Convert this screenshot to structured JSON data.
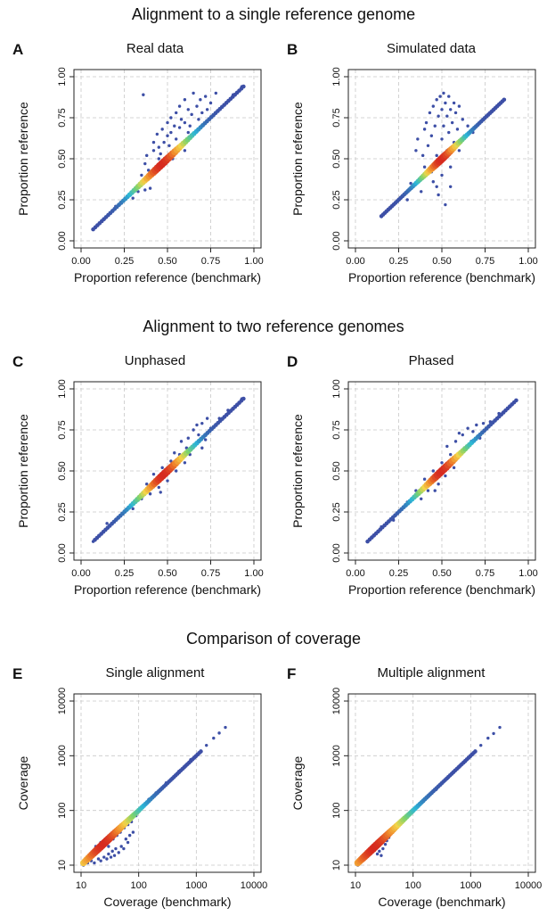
{
  "sections": [
    {
      "title": "Alignment to a single reference genome"
    },
    {
      "title": "Alignment to two reference genomes"
    },
    {
      "title": "Comparison of coverage"
    }
  ],
  "colors": {
    "axis": "#222222",
    "grid": "#c8c8c8",
    "points": "#3d4fa6",
    "density_gradient": [
      "#3d4fa6",
      "#2bb6d8",
      "#7ed36b",
      "#f3d54a",
      "#f08a2c",
      "#d62a1f"
    ]
  },
  "chart_data": [
    {
      "id": "A",
      "letter": "A",
      "title": "Real data",
      "type": "scatter",
      "xlabel": "Proportion reference (benchmark)",
      "ylabel": "Proportion reference",
      "scale": "linear",
      "xlim": [
        0,
        1
      ],
      "ylim": [
        0,
        1
      ],
      "xticks": [
        0,
        0.25,
        0.5,
        0.75,
        1
      ],
      "yticks": [
        0,
        0.25,
        0.5,
        0.75,
        1
      ],
      "xtick_labels": [
        "0.00",
        "0.25",
        "0.50",
        "0.75",
        "1.00"
      ],
      "ytick_labels": [
        "0.00",
        "0.25",
        "0.50",
        "0.75",
        "1.00"
      ],
      "grid": true,
      "diagonal": {
        "from": 0.07,
        "to": 0.94
      },
      "density_peak": 0.47,
      "points": [
        [
          0.07,
          0.07
        ],
        [
          0.12,
          0.12
        ],
        [
          0.2,
          0.21
        ],
        [
          0.3,
          0.26
        ],
        [
          0.33,
          0.3
        ],
        [
          0.35,
          0.4
        ],
        [
          0.37,
          0.47
        ],
        [
          0.38,
          0.52
        ],
        [
          0.4,
          0.32
        ],
        [
          0.42,
          0.55
        ],
        [
          0.42,
          0.6
        ],
        [
          0.44,
          0.65
        ],
        [
          0.45,
          0.5
        ],
        [
          0.45,
          0.57
        ],
        [
          0.47,
          0.68
        ],
        [
          0.48,
          0.6
        ],
        [
          0.5,
          0.72
        ],
        [
          0.5,
          0.64
        ],
        [
          0.52,
          0.75
        ],
        [
          0.52,
          0.66
        ],
        [
          0.54,
          0.7
        ],
        [
          0.55,
          0.78
        ],
        [
          0.55,
          0.62
        ],
        [
          0.57,
          0.82
        ],
        [
          0.57,
          0.69
        ],
        [
          0.58,
          0.74
        ],
        [
          0.6,
          0.86
        ],
        [
          0.6,
          0.72
        ],
        [
          0.62,
          0.8
        ],
        [
          0.63,
          0.7
        ],
        [
          0.64,
          0.77
        ],
        [
          0.65,
          0.9
        ],
        [
          0.67,
          0.82
        ],
        [
          0.68,
          0.74
        ],
        [
          0.69,
          0.86
        ],
        [
          0.7,
          0.78
        ],
        [
          0.72,
          0.88
        ],
        [
          0.73,
          0.8
        ],
        [
          0.75,
          0.84
        ],
        [
          0.78,
          0.9
        ],
        [
          0.36,
          0.89
        ],
        [
          0.37,
          0.31
        ],
        [
          0.39,
          0.43
        ],
        [
          0.53,
          0.5
        ],
        [
          0.6,
          0.55
        ],
        [
          0.88,
          0.89
        ],
        [
          0.93,
          0.94
        ],
        [
          0.46,
          0.53
        ],
        [
          0.51,
          0.58
        ],
        [
          0.62,
          0.66
        ]
      ]
    },
    {
      "id": "B",
      "letter": "B",
      "title": "Simulated data",
      "type": "scatter",
      "xlabel": "Proportion reference (benchmark)",
      "ylabel": "Proportion reference",
      "scale": "linear",
      "xlim": [
        0,
        1
      ],
      "ylim": [
        0,
        1
      ],
      "xticks": [
        0,
        0.25,
        0.5,
        0.75,
        1
      ],
      "yticks": [
        0,
        0.25,
        0.5,
        0.75,
        1
      ],
      "xtick_labels": [
        "0.00",
        "0.25",
        "0.50",
        "0.75",
        "1.00"
      ],
      "ytick_labels": [
        "0.00",
        "0.25",
        "0.50",
        "0.75",
        "1.00"
      ],
      "grid": true,
      "diagonal": {
        "from": 0.15,
        "to": 0.86
      },
      "density_peak": 0.5,
      "points": [
        [
          0.15,
          0.15
        ],
        [
          0.3,
          0.25
        ],
        [
          0.32,
          0.35
        ],
        [
          0.35,
          0.55
        ],
        [
          0.36,
          0.62
        ],
        [
          0.38,
          0.3
        ],
        [
          0.4,
          0.68
        ],
        [
          0.4,
          0.45
        ],
        [
          0.41,
          0.72
        ],
        [
          0.42,
          0.58
        ],
        [
          0.43,
          0.78
        ],
        [
          0.44,
          0.64
        ],
        [
          0.45,
          0.82
        ],
        [
          0.45,
          0.36
        ],
        [
          0.46,
          0.7
        ],
        [
          0.47,
          0.86
        ],
        [
          0.47,
          0.52
        ],
        [
          0.48,
          0.76
        ],
        [
          0.48,
          0.28
        ],
        [
          0.49,
          0.88
        ],
        [
          0.5,
          0.8
        ],
        [
          0.5,
          0.62
        ],
        [
          0.5,
          0.4
        ],
        [
          0.51,
          0.9
        ],
        [
          0.51,
          0.7
        ],
        [
          0.52,
          0.84
        ],
        [
          0.52,
          0.22
        ],
        [
          0.53,
          0.76
        ],
        [
          0.53,
          0.55
        ],
        [
          0.54,
          0.88
        ],
        [
          0.54,
          0.66
        ],
        [
          0.55,
          0.8
        ],
        [
          0.55,
          0.45
        ],
        [
          0.56,
          0.72
        ],
        [
          0.57,
          0.84
        ],
        [
          0.57,
          0.6
        ],
        [
          0.58,
          0.78
        ],
        [
          0.59,
          0.68
        ],
        [
          0.6,
          0.82
        ],
        [
          0.6,
          0.55
        ],
        [
          0.62,
          0.74
        ],
        [
          0.63,
          0.64
        ],
        [
          0.65,
          0.7
        ],
        [
          0.39,
          0.52
        ],
        [
          0.44,
          0.42
        ],
        [
          0.47,
          0.33
        ],
        [
          0.55,
          0.33
        ],
        [
          0.61,
          0.6
        ],
        [
          0.68,
          0.66
        ],
        [
          0.86,
          0.86
        ]
      ]
    },
    {
      "id": "C",
      "letter": "C",
      "title": "Unphased",
      "type": "scatter",
      "xlabel": "Proportion reference (benchmark)",
      "ylabel": "Proportion reference",
      "scale": "linear",
      "xlim": [
        0,
        1
      ],
      "ylim": [
        0,
        1
      ],
      "xticks": [
        0,
        0.25,
        0.5,
        0.75,
        1
      ],
      "yticks": [
        0,
        0.25,
        0.5,
        0.75,
        1
      ],
      "xtick_labels": [
        "0.00",
        "0.25",
        "0.50",
        "0.75",
        "1.00"
      ],
      "ytick_labels": [
        "0.00",
        "0.25",
        "0.50",
        "0.75",
        "1.00"
      ],
      "grid": true,
      "diagonal": {
        "from": 0.08,
        "to": 0.94
      },
      "density_peak": 0.48,
      "points": [
        [
          0.07,
          0.07
        ],
        [
          0.15,
          0.18
        ],
        [
          0.22,
          0.22
        ],
        [
          0.3,
          0.27
        ],
        [
          0.35,
          0.33
        ],
        [
          0.38,
          0.42
        ],
        [
          0.4,
          0.36
        ],
        [
          0.42,
          0.48
        ],
        [
          0.45,
          0.4
        ],
        [
          0.47,
          0.52
        ],
        [
          0.5,
          0.44
        ],
        [
          0.52,
          0.56
        ],
        [
          0.55,
          0.5
        ],
        [
          0.57,
          0.6
        ],
        [
          0.58,
          0.68
        ],
        [
          0.6,
          0.55
        ],
        [
          0.62,
          0.7
        ],
        [
          0.63,
          0.6
        ],
        [
          0.65,
          0.75
        ],
        [
          0.66,
          0.66
        ],
        [
          0.68,
          0.72
        ],
        [
          0.7,
          0.79
        ],
        [
          0.7,
          0.64
        ],
        [
          0.72,
          0.69
        ],
        [
          0.73,
          0.82
        ],
        [
          0.75,
          0.76
        ],
        [
          0.8,
          0.82
        ],
        [
          0.85,
          0.87
        ],
        [
          0.9,
          0.9
        ],
        [
          0.93,
          0.94
        ],
        [
          0.46,
          0.37
        ],
        [
          0.54,
          0.61
        ],
        [
          0.61,
          0.64
        ],
        [
          0.67,
          0.78
        ]
      ]
    },
    {
      "id": "D",
      "letter": "D",
      "title": "Phased",
      "type": "scatter",
      "xlabel": "Proportion reference (benchmark)",
      "ylabel": "Proportion reference",
      "scale": "linear",
      "xlim": [
        0,
        1
      ],
      "ylim": [
        0,
        1
      ],
      "xticks": [
        0,
        0.25,
        0.5,
        0.75,
        1
      ],
      "yticks": [
        0,
        0.25,
        0.5,
        0.75,
        1
      ],
      "xtick_labels": [
        "0.00",
        "0.25",
        "0.50",
        "0.75",
        "1.00"
      ],
      "ytick_labels": [
        "0.00",
        "0.25",
        "0.50",
        "0.75",
        "1.00"
      ],
      "grid": true,
      "diagonal": {
        "from": 0.07,
        "to": 0.93
      },
      "density_peak": 0.5,
      "points": [
        [
          0.07,
          0.07
        ],
        [
          0.15,
          0.16
        ],
        [
          0.22,
          0.2
        ],
        [
          0.3,
          0.31
        ],
        [
          0.35,
          0.38
        ],
        [
          0.38,
          0.33
        ],
        [
          0.4,
          0.45
        ],
        [
          0.42,
          0.38
        ],
        [
          0.45,
          0.5
        ],
        [
          0.48,
          0.42
        ],
        [
          0.5,
          0.55
        ],
        [
          0.52,
          0.47
        ],
        [
          0.55,
          0.6
        ],
        [
          0.57,
          0.52
        ],
        [
          0.58,
          0.68
        ],
        [
          0.6,
          0.6
        ],
        [
          0.62,
          0.72
        ],
        [
          0.63,
          0.64
        ],
        [
          0.65,
          0.76
        ],
        [
          0.67,
          0.68
        ],
        [
          0.68,
          0.74
        ],
        [
          0.7,
          0.78
        ],
        [
          0.72,
          0.7
        ],
        [
          0.74,
          0.79
        ],
        [
          0.78,
          0.8
        ],
        [
          0.83,
          0.85
        ],
        [
          0.88,
          0.88
        ],
        [
          0.93,
          0.93
        ],
        [
          0.53,
          0.65
        ],
        [
          0.6,
          0.73
        ],
        [
          0.46,
          0.38
        ]
      ]
    },
    {
      "id": "E",
      "letter": "E",
      "title": "Single alignment",
      "type": "scatter",
      "xlabel": "Coverage (benchmark)",
      "ylabel": "Coverage",
      "scale": "log",
      "xlim": [
        10,
        10000
      ],
      "ylim": [
        10,
        10000
      ],
      "xticks": [
        10,
        100,
        1000,
        10000
      ],
      "yticks": [
        10,
        100,
        1000,
        10000
      ],
      "xtick_labels": [
        "10",
        "100",
        "1000",
        "10000"
      ],
      "ytick_labels": [
        "10",
        "100",
        "1000",
        "10000"
      ],
      "grid": true,
      "diagonal": {
        "from": 11,
        "to": 1200
      },
      "density_peak": 25,
      "points": [
        [
          11,
          10
        ],
        [
          13,
          11
        ],
        [
          15,
          12
        ],
        [
          17,
          11
        ],
        [
          20,
          13
        ],
        [
          22,
          12
        ],
        [
          25,
          14
        ],
        [
          28,
          13
        ],
        [
          30,
          16
        ],
        [
          33,
          14
        ],
        [
          35,
          18
        ],
        [
          38,
          15
        ],
        [
          40,
          20
        ],
        [
          45,
          17
        ],
        [
          50,
          22
        ],
        [
          55,
          20
        ],
        [
          60,
          30
        ],
        [
          65,
          26
        ],
        [
          70,
          35
        ],
        [
          80,
          40
        ],
        [
          18,
          22
        ],
        [
          22,
          26
        ],
        [
          27,
          30
        ],
        [
          30,
          22
        ],
        [
          36,
          30
        ],
        [
          42,
          35
        ],
        [
          48,
          40
        ],
        [
          56,
          48
        ],
        [
          65,
          55
        ],
        [
          75,
          62
        ],
        [
          90,
          80
        ],
        [
          100,
          95
        ],
        [
          150,
          160
        ],
        [
          200,
          210
        ],
        [
          300,
          320
        ],
        [
          500,
          520
        ],
        [
          800,
          850
        ],
        [
          1500,
          1550
        ],
        [
          2000,
          2100
        ],
        [
          2500,
          2600
        ],
        [
          3200,
          3300
        ]
      ]
    },
    {
      "id": "F",
      "letter": "F",
      "title": "Multiple alignment",
      "type": "scatter",
      "xlabel": "Coverage (benchmark)",
      "ylabel": "Coverage",
      "scale": "log",
      "xlim": [
        10,
        10000
      ],
      "ylim": [
        10,
        10000
      ],
      "xticks": [
        10,
        100,
        1000,
        10000
      ],
      "yticks": [
        10,
        100,
        1000,
        10000
      ],
      "xtick_labels": [
        "10",
        "100",
        "1000",
        "10000"
      ],
      "ytick_labels": [
        "10",
        "100",
        "1000",
        "10000"
      ],
      "grid": true,
      "diagonal": {
        "from": 11,
        "to": 1200
      },
      "density_peak": 22,
      "points": [
        [
          11,
          10
        ],
        [
          13,
          12
        ],
        [
          15,
          14
        ],
        [
          18,
          16
        ],
        [
          20,
          18
        ],
        [
          22,
          20
        ],
        [
          24,
          16
        ],
        [
          26,
          18
        ],
        [
          28,
          15
        ],
        [
          30,
          20
        ],
        [
          33,
          24
        ],
        [
          35,
          28
        ],
        [
          38,
          32
        ],
        [
          40,
          36
        ],
        [
          45,
          42
        ],
        [
          50,
          46
        ],
        [
          60,
          56
        ],
        [
          70,
          66
        ],
        [
          80,
          76
        ],
        [
          100,
          95
        ],
        [
          150,
          145
        ],
        [
          250,
          240
        ],
        [
          400,
          390
        ],
        [
          800,
          780
        ],
        [
          1500,
          1550
        ],
        [
          2000,
          2100
        ],
        [
          2500,
          2550
        ],
        [
          3200,
          3300
        ]
      ]
    }
  ]
}
